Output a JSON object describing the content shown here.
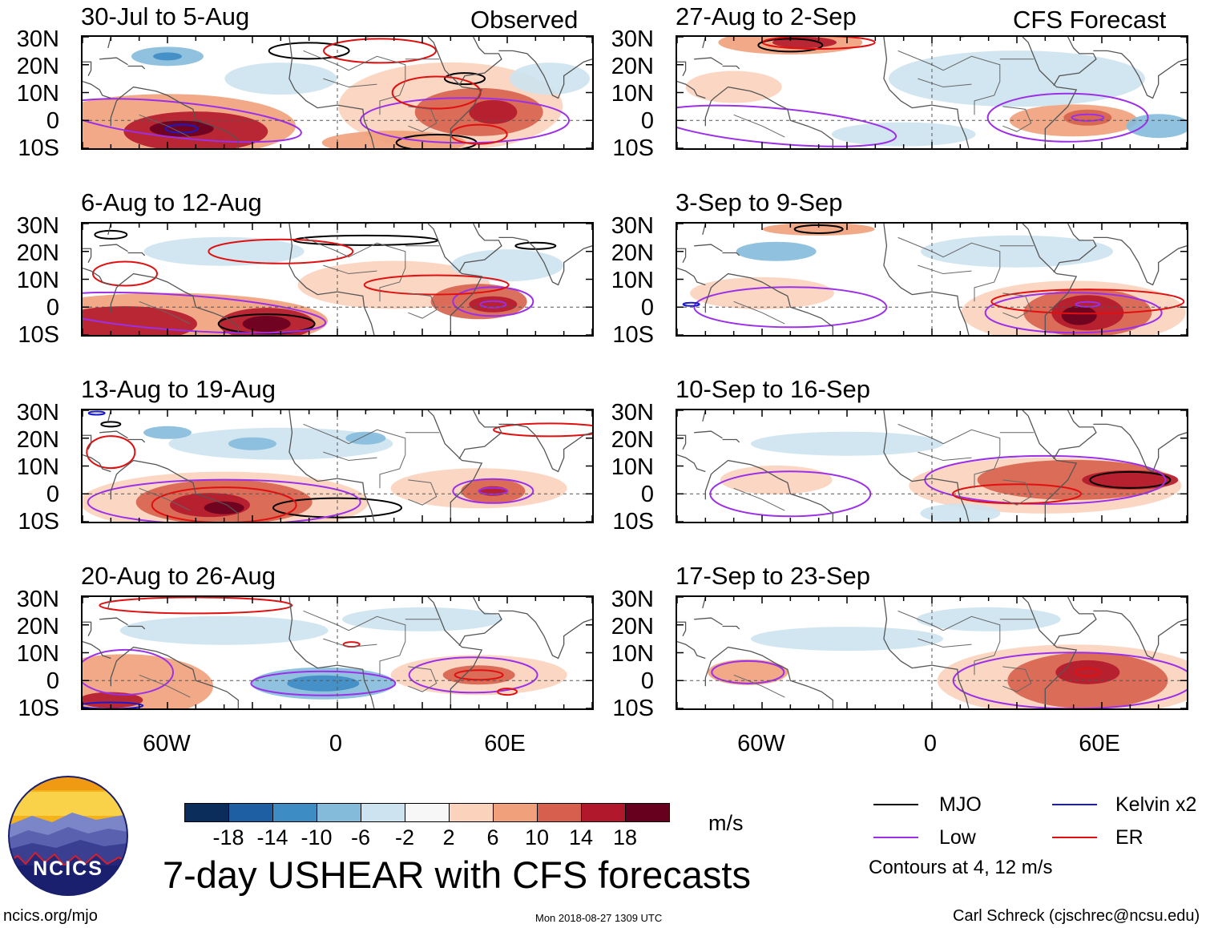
{
  "header": {
    "left": "Observed",
    "right": "CFS Forecast"
  },
  "panels": {
    "observed": [
      {
        "title": "30-Jul to 5-Aug"
      },
      {
        "title": "6-Aug to 12-Aug"
      },
      {
        "title": "13-Aug to 19-Aug"
      },
      {
        "title": "20-Aug to 26-Aug"
      }
    ],
    "forecast": [
      {
        "title": "27-Aug to 2-Sep"
      },
      {
        "title": "3-Sep to 9-Sep"
      },
      {
        "title": "10-Sep to 16-Sep"
      },
      {
        "title": "17-Sep to 23-Sep"
      }
    ]
  },
  "axes": {
    "lat_labels": [
      "30N",
      "20N",
      "10N",
      "0",
      "10S"
    ],
    "lon_labels": [
      "60W",
      "0",
      "60E"
    ]
  },
  "colorbar": {
    "labels": [
      "-18",
      "-14",
      "-10",
      "-6",
      "-2",
      "2",
      "6",
      "10",
      "14",
      "18"
    ],
    "colors": [
      "#0b2d5b",
      "#1e5fa3",
      "#3d8cc4",
      "#84bbdb",
      "#cde3ef",
      "#f7f7f7",
      "#fbd3bd",
      "#f0a07a",
      "#d6604d",
      "#b2182b",
      "#67001f"
    ],
    "units": "m/s"
  },
  "legend": {
    "mjo": "MJO",
    "kelvin": "Kelvin x2",
    "low": "Low",
    "er": "ER",
    "contours_note": "Contours at 4, 12 m/s",
    "colors": {
      "mjo": "#000000",
      "kelvin": "#1a1acc",
      "low": "#9b30e8",
      "er": "#e01010"
    }
  },
  "logo": {
    "text": "NCICS"
  },
  "footer": {
    "title": "7-day USHEAR with CFS forecasts",
    "url": "ncics.org/mjo",
    "timestamp": "Mon 2018-08-27 1309 UTC",
    "credit": "Carl Schreck (cjschrec@ncsu.edu)"
  }
}
